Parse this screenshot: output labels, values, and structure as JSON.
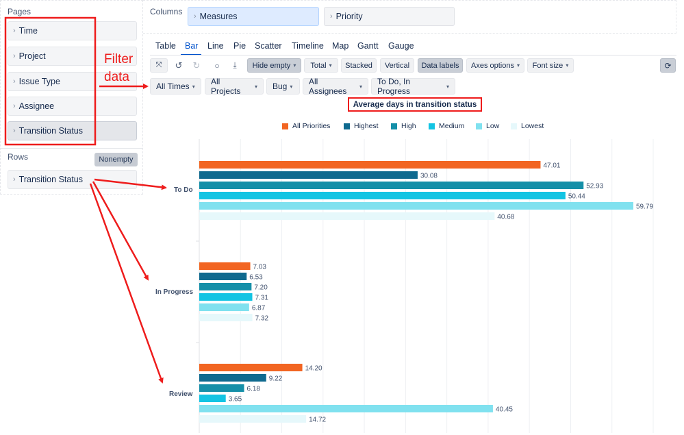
{
  "pages": {
    "title": "Pages",
    "items": [
      "Time",
      "Project",
      "Issue Type",
      "Assignee",
      "Transition Status"
    ]
  },
  "rows": {
    "title": "Rows",
    "nonempty_label": "Nonempty",
    "item": "Transition Status"
  },
  "columns": {
    "title": "Columns",
    "items": [
      "Measures",
      "Priority"
    ]
  },
  "tabs": [
    "Table",
    "Bar",
    "Line",
    "Pie",
    "Scatter",
    "Timeline",
    "Map",
    "Gantt",
    "Gauge"
  ],
  "active_tab": "Bar",
  "toolbar": {
    "hide_empty": "Hide empty",
    "total": "Total",
    "stacked": "Stacked",
    "vertical": "Vertical",
    "data_labels": "Data labels",
    "axes_options": "Axes options",
    "font_size": "Font size"
  },
  "filters": [
    "All Times",
    "All Projects",
    "Bug",
    "All Assignees",
    "To Do, In Progress"
  ],
  "annotation": {
    "line1": "Filter",
    "line2": "data"
  },
  "colors": {
    "accent_red": "#ee1c1c",
    "active_tab": "#0052cc"
  },
  "chart_data": {
    "type": "bar",
    "orientation": "horizontal",
    "title": "Average days in transition status",
    "categories": [
      "To Do",
      "In Progress",
      "Review"
    ],
    "series": [
      {
        "name": "All Priorities",
        "color": "#f26522",
        "values": [
          47.01,
          7.03,
          14.2
        ]
      },
      {
        "name": "Highest",
        "color": "#0f6a8f",
        "values": [
          30.08,
          6.53,
          9.22
        ]
      },
      {
        "name": "High",
        "color": "#158fa8",
        "values": [
          52.93,
          7.2,
          6.18
        ]
      },
      {
        "name": "Medium",
        "color": "#13c4e3",
        "values": [
          50.44,
          7.31,
          3.65
        ]
      },
      {
        "name": "Low",
        "color": "#80e1ef",
        "values": [
          59.79,
          6.87,
          40.45
        ]
      },
      {
        "name": "Lowest",
        "color": "#e6f8fb",
        "values": [
          40.68,
          7.32,
          14.72
        ]
      }
    ],
    "xlim": [
      0,
      60
    ],
    "data_labels": true,
    "grid": true
  }
}
